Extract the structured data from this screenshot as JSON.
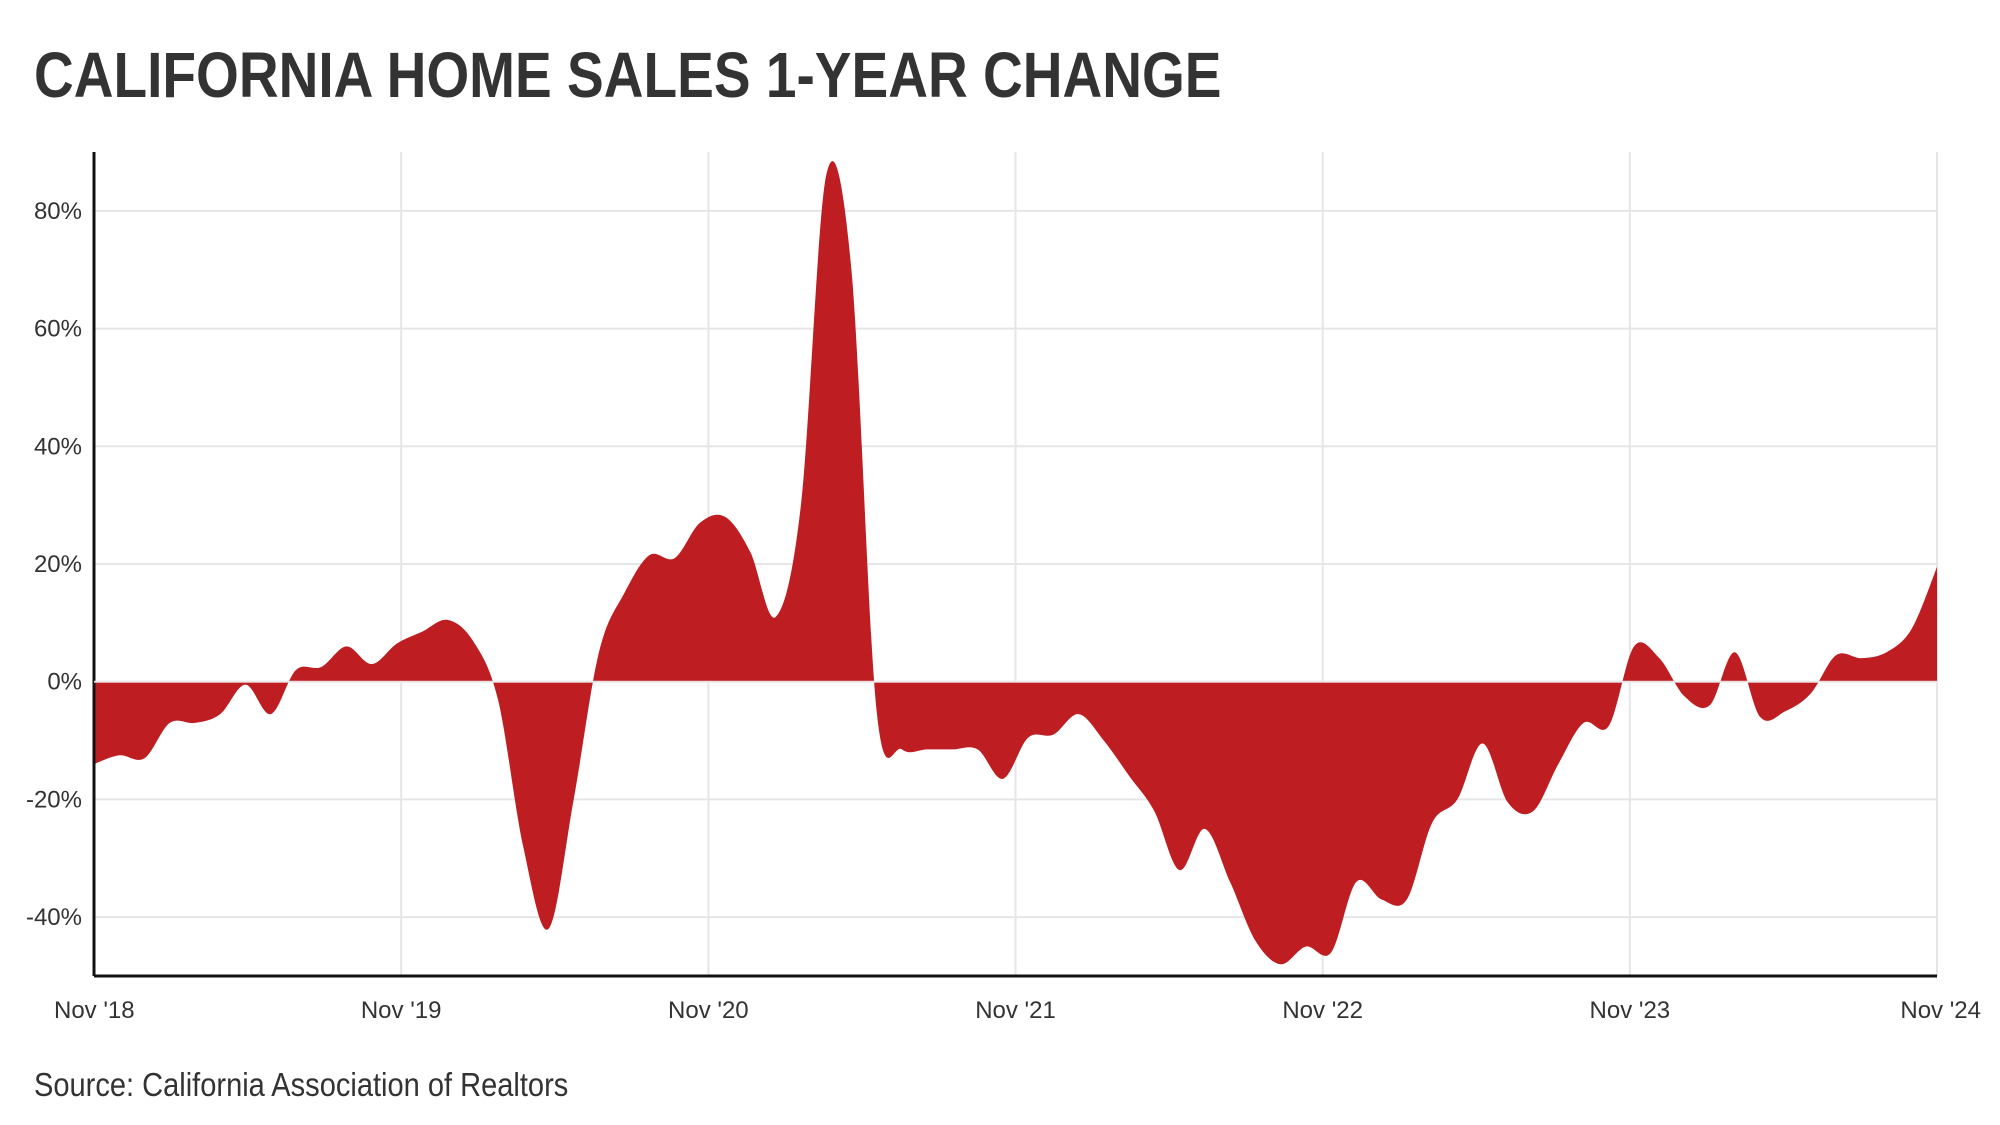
{
  "title": "CALIFORNIA HOME SALES 1-YEAR CHANGE",
  "source": "Source: California Association of Realtors",
  "colors": {
    "area": "#be1e22",
    "grid": "#e6e6e6",
    "axis": "#111111",
    "text": "#333333"
  },
  "chart_data": {
    "type": "area",
    "title": "CALIFORNIA HOME SALES 1-YEAR CHANGE",
    "xlabel": "",
    "ylabel": "",
    "ylim": [
      -50,
      90
    ],
    "y_ticks": [
      -40,
      -20,
      0,
      20,
      40,
      60,
      80
    ],
    "y_tick_labels": [
      "-40%",
      "-20%",
      "0%",
      "20%",
      "40%",
      "60%",
      "80%"
    ],
    "x_tick_labels": [
      "Nov '18",
      "Nov '19",
      "Nov '20",
      "Nov '21",
      "Nov '22",
      "Nov '23",
      "Nov '24"
    ],
    "grid": true,
    "series": [
      {
        "values": [
          -14,
          -12.5,
          -13,
          -7,
          -7,
          -5.5,
          -0.5,
          -5.5,
          2,
          2.5,
          6,
          3,
          6.5,
          8.5,
          10.5,
          7,
          -3,
          -28,
          -42,
          -20,
          5,
          15,
          21.5,
          21,
          27,
          28,
          22,
          11,
          30,
          86,
          70,
          -5,
          -11.5,
          -11.5,
          -11.5,
          -11.5,
          -16.5,
          -9.5,
          -9,
          -5.5,
          -10,
          -16,
          -22,
          -32,
          -25,
          -34,
          -44,
          -48,
          -45,
          -46,
          -34,
          -37,
          -37,
          -24,
          -20,
          -10.5,
          -20.5,
          -22,
          -14,
          -7,
          -7.5,
          6,
          4,
          -2.5,
          -4,
          5,
          -6,
          -5,
          -2,
          4.5,
          4,
          5,
          9,
          19.5
        ]
      }
    ]
  }
}
